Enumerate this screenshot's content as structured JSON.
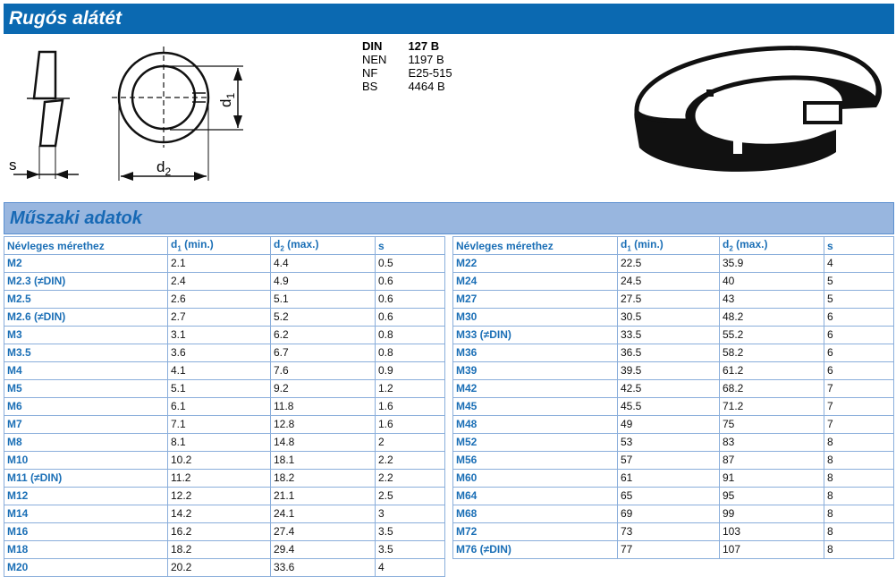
{
  "title": "Rugós alátét",
  "standards": [
    {
      "name": "DIN",
      "value": "127 B"
    },
    {
      "name": "NEN",
      "value": "1197 B"
    },
    {
      "name": "NF",
      "value": "E25-515"
    },
    {
      "name": "BS",
      "value": "4464 B"
    }
  ],
  "drawing": {
    "s": "s",
    "d1": "d1",
    "d2": "d2"
  },
  "section_title": "Műszaki adatok",
  "headers": {
    "size": "Névleges mérethez",
    "d1": "d",
    "d1_sub": "1",
    "d1_suffix": " (min.)",
    "d2": "d",
    "d2_sub": "2",
    "d2_suffix": " (max.)",
    "s": "s"
  },
  "left_rows": [
    [
      "M2",
      "2.1",
      "4.4",
      "0.5"
    ],
    [
      "M2.3 (≠DIN)",
      "2.4",
      "4.9",
      "0.6"
    ],
    [
      "M2.5",
      "2.6",
      "5.1",
      "0.6"
    ],
    [
      "M2.6 (≠DIN)",
      "2.7",
      "5.2",
      "0.6"
    ],
    [
      "M3",
      "3.1",
      "6.2",
      "0.8"
    ],
    [
      "M3.5",
      "3.6",
      "6.7",
      "0.8"
    ],
    [
      "M4",
      "4.1",
      "7.6",
      "0.9"
    ],
    [
      "M5",
      "5.1",
      "9.2",
      "1.2"
    ],
    [
      "M6",
      "6.1",
      "11.8",
      "1.6"
    ],
    [
      "M7",
      "7.1",
      "12.8",
      "1.6"
    ],
    [
      "M8",
      "8.1",
      "14.8",
      "2"
    ],
    [
      "M10",
      "10.2",
      "18.1",
      "2.2"
    ],
    [
      "M11 (≠DIN)",
      "11.2",
      "18.2",
      "2.2"
    ],
    [
      "M12",
      "12.2",
      "21.1",
      "2.5"
    ],
    [
      "M14",
      "14.2",
      "24.1",
      "3"
    ],
    [
      "M16",
      "16.2",
      "27.4",
      "3.5"
    ],
    [
      "M18",
      "18.2",
      "29.4",
      "3.5"
    ],
    [
      "M20",
      "20.2",
      "33.6",
      "4"
    ]
  ],
  "right_rows": [
    [
      "M22",
      "22.5",
      "35.9",
      "4"
    ],
    [
      "M24",
      "24.5",
      "40",
      "5"
    ],
    [
      "M27",
      "27.5",
      "43",
      "5"
    ],
    [
      "M30",
      "30.5",
      "48.2",
      "6"
    ],
    [
      "M33 (≠DIN)",
      "33.5",
      "55.2",
      "6"
    ],
    [
      "M36",
      "36.5",
      "58.2",
      "6"
    ],
    [
      "M39",
      "39.5",
      "61.2",
      "6"
    ],
    [
      "M42",
      "42.5",
      "68.2",
      "7"
    ],
    [
      "M45",
      "45.5",
      "71.2",
      "7"
    ],
    [
      "M48",
      "49",
      "75",
      "7"
    ],
    [
      "M52",
      "53",
      "83",
      "8"
    ],
    [
      "M56",
      "57",
      "87",
      "8"
    ],
    [
      "M60",
      "61",
      "91",
      "8"
    ],
    [
      "M64",
      "65",
      "95",
      "8"
    ],
    [
      "M68",
      "69",
      "99",
      "8"
    ],
    [
      "M72",
      "73",
      "103",
      "8"
    ],
    [
      "M76 (≠DIN)",
      "77",
      "107",
      "8"
    ]
  ]
}
